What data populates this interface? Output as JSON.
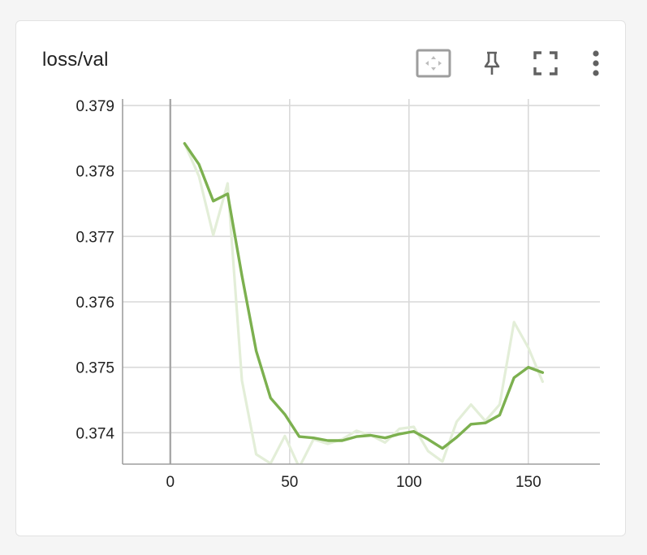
{
  "card": {
    "title": "loss/val"
  },
  "toolbar": {
    "buttons": [
      {
        "icon": "fit-to-data-icon"
      },
      {
        "icon": "pin-icon"
      },
      {
        "icon": "fullscreen-icon"
      },
      {
        "icon": "more-vert-icon"
      }
    ]
  },
  "colors": {
    "smoothed": "#7cb04f",
    "raw": "#e3eed8",
    "grid": "#d9d9d9",
    "axis": "#9e9e9e",
    "zero_line": "#a8a8a8"
  },
  "chart_data": {
    "type": "line",
    "title": "loss/val",
    "xlabel": "",
    "ylabel": "",
    "xlim": [
      -20,
      180
    ],
    "ylim": [
      0.37352,
      0.3791
    ],
    "x_ticks": [
      0,
      50,
      100,
      150
    ],
    "y_ticks": [
      0.374,
      0.375,
      0.376,
      0.377,
      0.378,
      0.379
    ],
    "grid": true,
    "series": [
      {
        "role": "raw",
        "x": [
          6,
          12,
          18,
          24,
          30,
          36,
          42,
          48,
          54,
          60,
          66,
          72,
          78,
          84,
          90,
          96,
          102,
          108,
          114,
          120,
          126,
          132,
          138,
          144,
          150,
          156
        ],
        "y": [
          0.37842,
          0.37792,
          0.37702,
          0.37781,
          0.3748,
          0.37367,
          0.37353,
          0.37395,
          0.37347,
          0.3739,
          0.37383,
          0.3739,
          0.37403,
          0.37396,
          0.37385,
          0.37406,
          0.37409,
          0.37372,
          0.37356,
          0.37417,
          0.37443,
          0.37418,
          0.37443,
          0.37569,
          0.3753,
          0.37478
        ]
      },
      {
        "role": "smoothed",
        "x": [
          6,
          12,
          18,
          24,
          30,
          36,
          42,
          48,
          54,
          60,
          66,
          72,
          78,
          84,
          90,
          96,
          102,
          108,
          114,
          120,
          126,
          132,
          138,
          144,
          150,
          156
        ],
        "y": [
          0.37842,
          0.3781,
          0.37754,
          0.37765,
          0.3764,
          0.37525,
          0.37453,
          0.37428,
          0.37394,
          0.37392,
          0.37388,
          0.37388,
          0.37394,
          0.37396,
          0.37392,
          0.37398,
          0.37402,
          0.3739,
          0.37376,
          0.37393,
          0.37413,
          0.37415,
          0.37427,
          0.37484,
          0.375,
          0.37492
        ]
      }
    ]
  }
}
